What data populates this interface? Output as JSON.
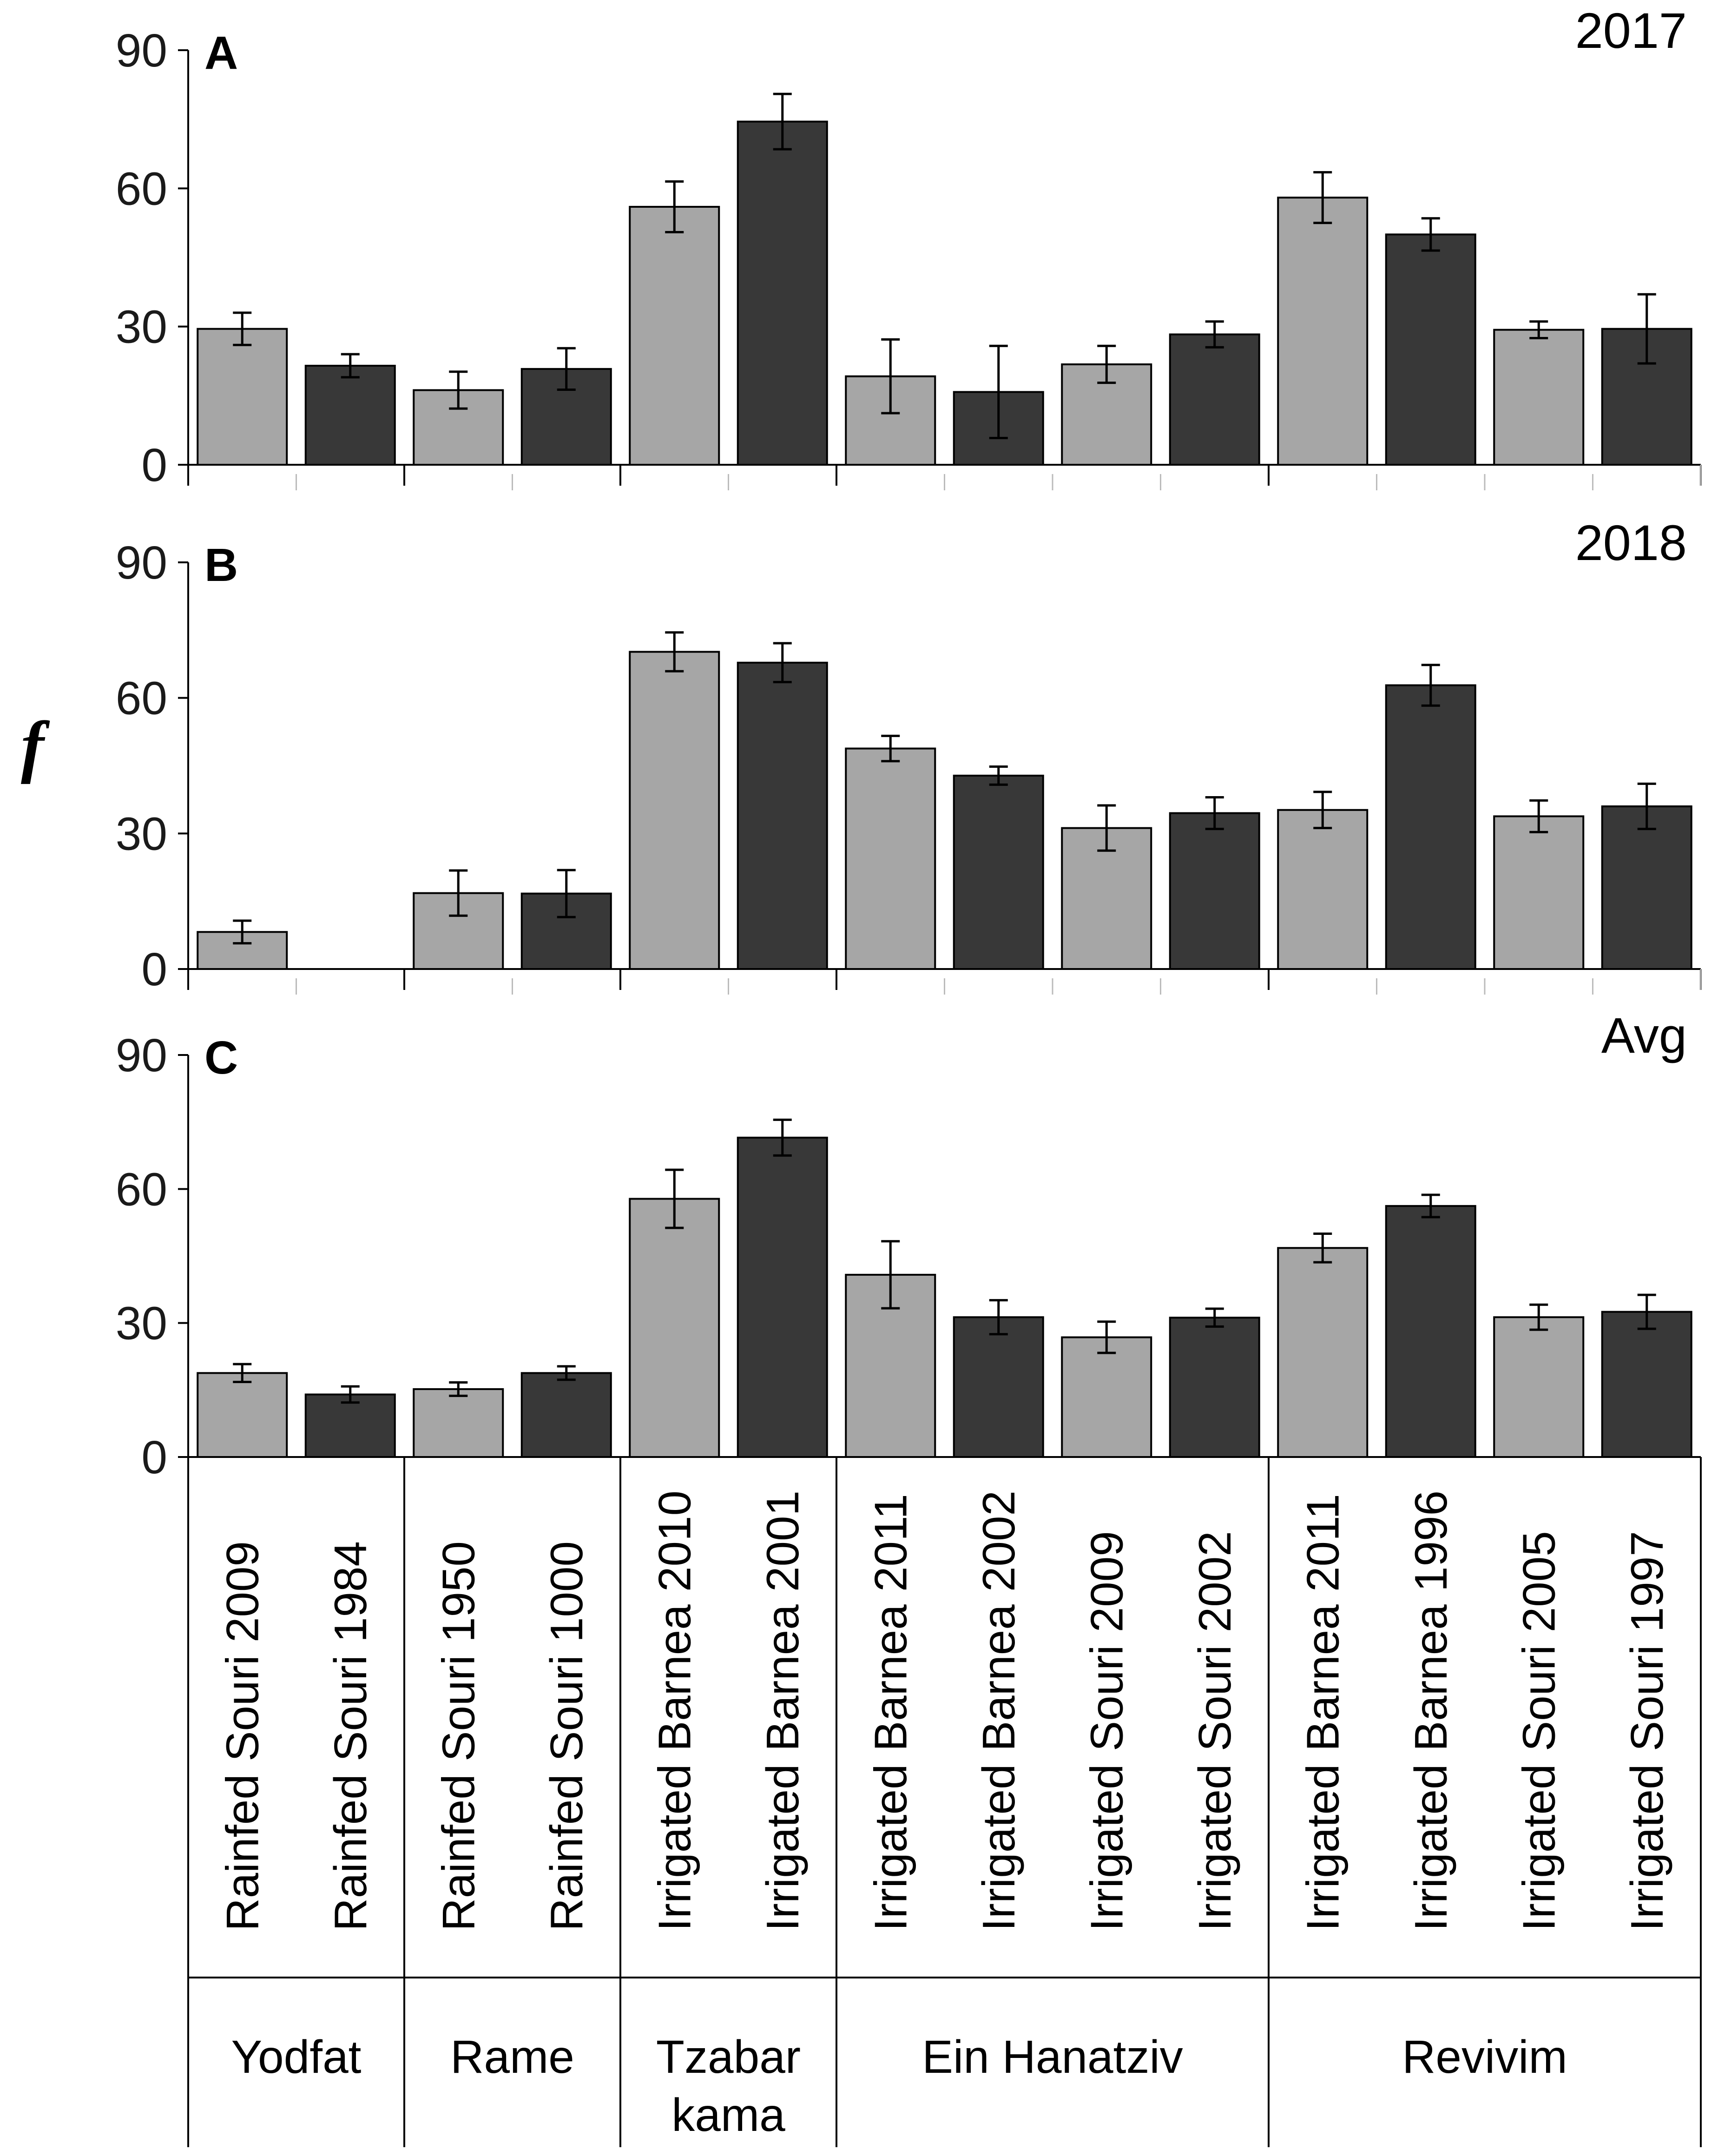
{
  "chart_data": {
    "type": "bar",
    "ylabel": "f",
    "ylim": [
      0,
      90
    ],
    "yticks": [
      0,
      30,
      60,
      90
    ],
    "colors": {
      "light": "#a6a6a6",
      "dark": "#383838",
      "border": "#000000"
    },
    "categories": [
      "Rainfed Souri 2009",
      "Rainfed Souri 1984",
      "Rainfed Souri 1950",
      "Rainfed Souri 1000",
      "Irrigated Barnea 2010",
      "Irrigated Barnea 2001",
      "Irrigated Barnea 2011",
      "Irrigated Barnea 2002",
      "Irrigated Souri 2009",
      "Irrigated Souri 2002",
      "Irrigated Barnea 2011",
      "Irrigated Barnea 1996",
      "Irrigated Souri 2005",
      "Irrigated Souri 1997"
    ],
    "shade": [
      "light",
      "dark",
      "light",
      "dark",
      "light",
      "dark",
      "light",
      "dark",
      "light",
      "dark",
      "light",
      "dark",
      "light",
      "dark"
    ],
    "sites": [
      {
        "name": "Yodfat",
        "lines": [
          "Yodfat"
        ],
        "count": 2
      },
      {
        "name": "Rame",
        "lines": [
          "Rame"
        ],
        "count": 2
      },
      {
        "name": "Tzabar kama",
        "lines": [
          "Tzabar",
          "kama"
        ],
        "count": 2
      },
      {
        "name": "Ein Hanatziv",
        "lines": [
          "Ein Hanatziv"
        ],
        "count": 4
      },
      {
        "name": "Revivim",
        "lines": [
          "Revivim"
        ],
        "count": 4
      }
    ],
    "panels": [
      {
        "letter": "A",
        "year": "2017",
        "values": [
          29.5,
          21.5,
          16.2,
          20.8,
          56,
          74.5,
          19.2,
          15.8,
          21.8,
          28.3,
          58,
          50,
          29.3,
          29.5
        ],
        "errors": [
          3.5,
          2.5,
          4,
          4.5,
          5.5,
          6,
          8,
          10,
          4,
          2.8,
          5.5,
          3.5,
          1.8,
          7.5
        ]
      },
      {
        "letter": "B",
        "year": "2018",
        "values": [
          8.2,
          0,
          16.8,
          16.7,
          70.2,
          67.8,
          48.8,
          42.8,
          31.2,
          34.5,
          35.2,
          62.8,
          33.8,
          36
        ],
        "errors": [
          2.5,
          0,
          5,
          5.2,
          4.3,
          4.3,
          2.8,
          2,
          5,
          3.5,
          4,
          4.5,
          3.5,
          5
        ]
      },
      {
        "letter": "C",
        "year": "Avg",
        "values": [
          18.8,
          14,
          15.2,
          18.8,
          57.8,
          71.5,
          40.8,
          31.3,
          26.8,
          31.2,
          46.8,
          56.2,
          31.3,
          32.5
        ],
        "errors": [
          2,
          1.8,
          1.5,
          1.5,
          6.5,
          4,
          7.5,
          3.8,
          3.5,
          2,
          3.2,
          2.5,
          2.8,
          3.8
        ]
      }
    ]
  }
}
